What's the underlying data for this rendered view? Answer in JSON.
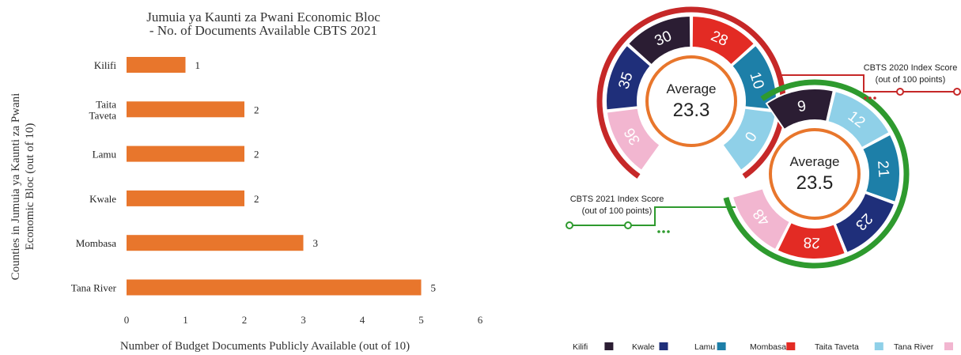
{
  "chart_data": [
    {
      "type": "bar",
      "orientation": "horizontal",
      "title": "Jumuia ya Kaunti za Pwani Economic Bloc - No. of Documents Available CBTS 2021",
      "title_lines": [
        "Jumuia ya Kaunti za Pwani Economic Bloc",
        "- No. of Documents Available CBTS 2021"
      ],
      "ylabel": "Counties in Jumuia ya Kaunti za Pwani Economic Bloc (out of 10)",
      "ylabel_lines": [
        "Counties in Jumuia ya Kaunti za Pwani",
        "Economic Bloc (out of 10)"
      ],
      "xlabel": "Number of Budget Documents Publicly Available (out of 10)",
      "categories": [
        {
          "label": [
            "Kilifi"
          ],
          "value": 1
        },
        {
          "label": [
            "Taita",
            "Taveta"
          ],
          "value": 2
        },
        {
          "label": [
            "Lamu"
          ],
          "value": 2
        },
        {
          "label": [
            "Kwale"
          ],
          "value": 2
        },
        {
          "label": [
            "Mombasa"
          ],
          "value": 3
        },
        {
          "label": [
            "Tana River"
          ],
          "value": 5
        }
      ],
      "xlim": [
        0,
        6
      ],
      "xticks": [
        "0",
        "1",
        "2",
        "3",
        "4",
        "5",
        "6"
      ],
      "bar_color": "#e8762c",
      "grid": false
    },
    {
      "type": "donut",
      "gauges": [
        {
          "name": "CBTS 2020 Index Score",
          "label_lines": [
            "CBTS 2020 Index Score",
            "(out of 100 points)"
          ],
          "average_label": "Average",
          "average_value": "23.3",
          "ring_color": "#c62828",
          "segments": [
            {
              "county": "Tana River",
              "value": 36,
              "label": "36",
              "color": "#f2b6d0"
            },
            {
              "county": "Kwale",
              "value": 35,
              "label": "35",
              "color": "#1f2f7a"
            },
            {
              "county": "Kilifi",
              "value": 30,
              "label": "30",
              "color": "#2b1d33"
            },
            {
              "county": "Mombasa",
              "value": 28,
              "label": "28",
              "color": "#e32b24"
            },
            {
              "county": "Lamu",
              "value": 10,
              "label": "10",
              "color": "#1d7fa8"
            },
            {
              "county": "Taita Taveta",
              "value": 0,
              "label": "0",
              "color": "#8fd0e8"
            }
          ]
        },
        {
          "name": "CBTS 2021 Index Score",
          "label_lines": [
            "CBTS 2021 Index Score",
            "(out of 100 points)"
          ],
          "average_label": "Average",
          "average_value": "23.5",
          "ring_color": "#2e9a2e",
          "segments": [
            {
              "county": "Kilifi",
              "value": 9,
              "label": "9",
              "color": "#2b1d33"
            },
            {
              "county": "Taita Taveta",
              "value": 12,
              "label": "12",
              "color": "#8fd0e8"
            },
            {
              "county": "Lamu",
              "value": 21,
              "label": "21",
              "color": "#1d7fa8"
            },
            {
              "county": "Kwale",
              "value": 23,
              "label": "23",
              "color": "#1f2f7a"
            },
            {
              "county": "Mombasa",
              "value": 28,
              "label": "28",
              "color": "#e32b24"
            },
            {
              "county": "Tana River",
              "value": 48,
              "label": "48",
              "color": "#f2b6d0"
            }
          ]
        }
      ],
      "legend": [
        {
          "label": "Kilifi",
          "color": "#2b1d33"
        },
        {
          "label": "Kwale",
          "color": "#1f2f7a"
        },
        {
          "label": "Lamu",
          "color": "#1d7fa8"
        },
        {
          "label": "Mombasa",
          "color": "#e32b24"
        },
        {
          "label": "Taita Taveta",
          "color": "#8fd0e8"
        },
        {
          "label": "Tana River",
          "color": "#f2b6d0"
        }
      ],
      "legend_position": "bottom"
    }
  ]
}
